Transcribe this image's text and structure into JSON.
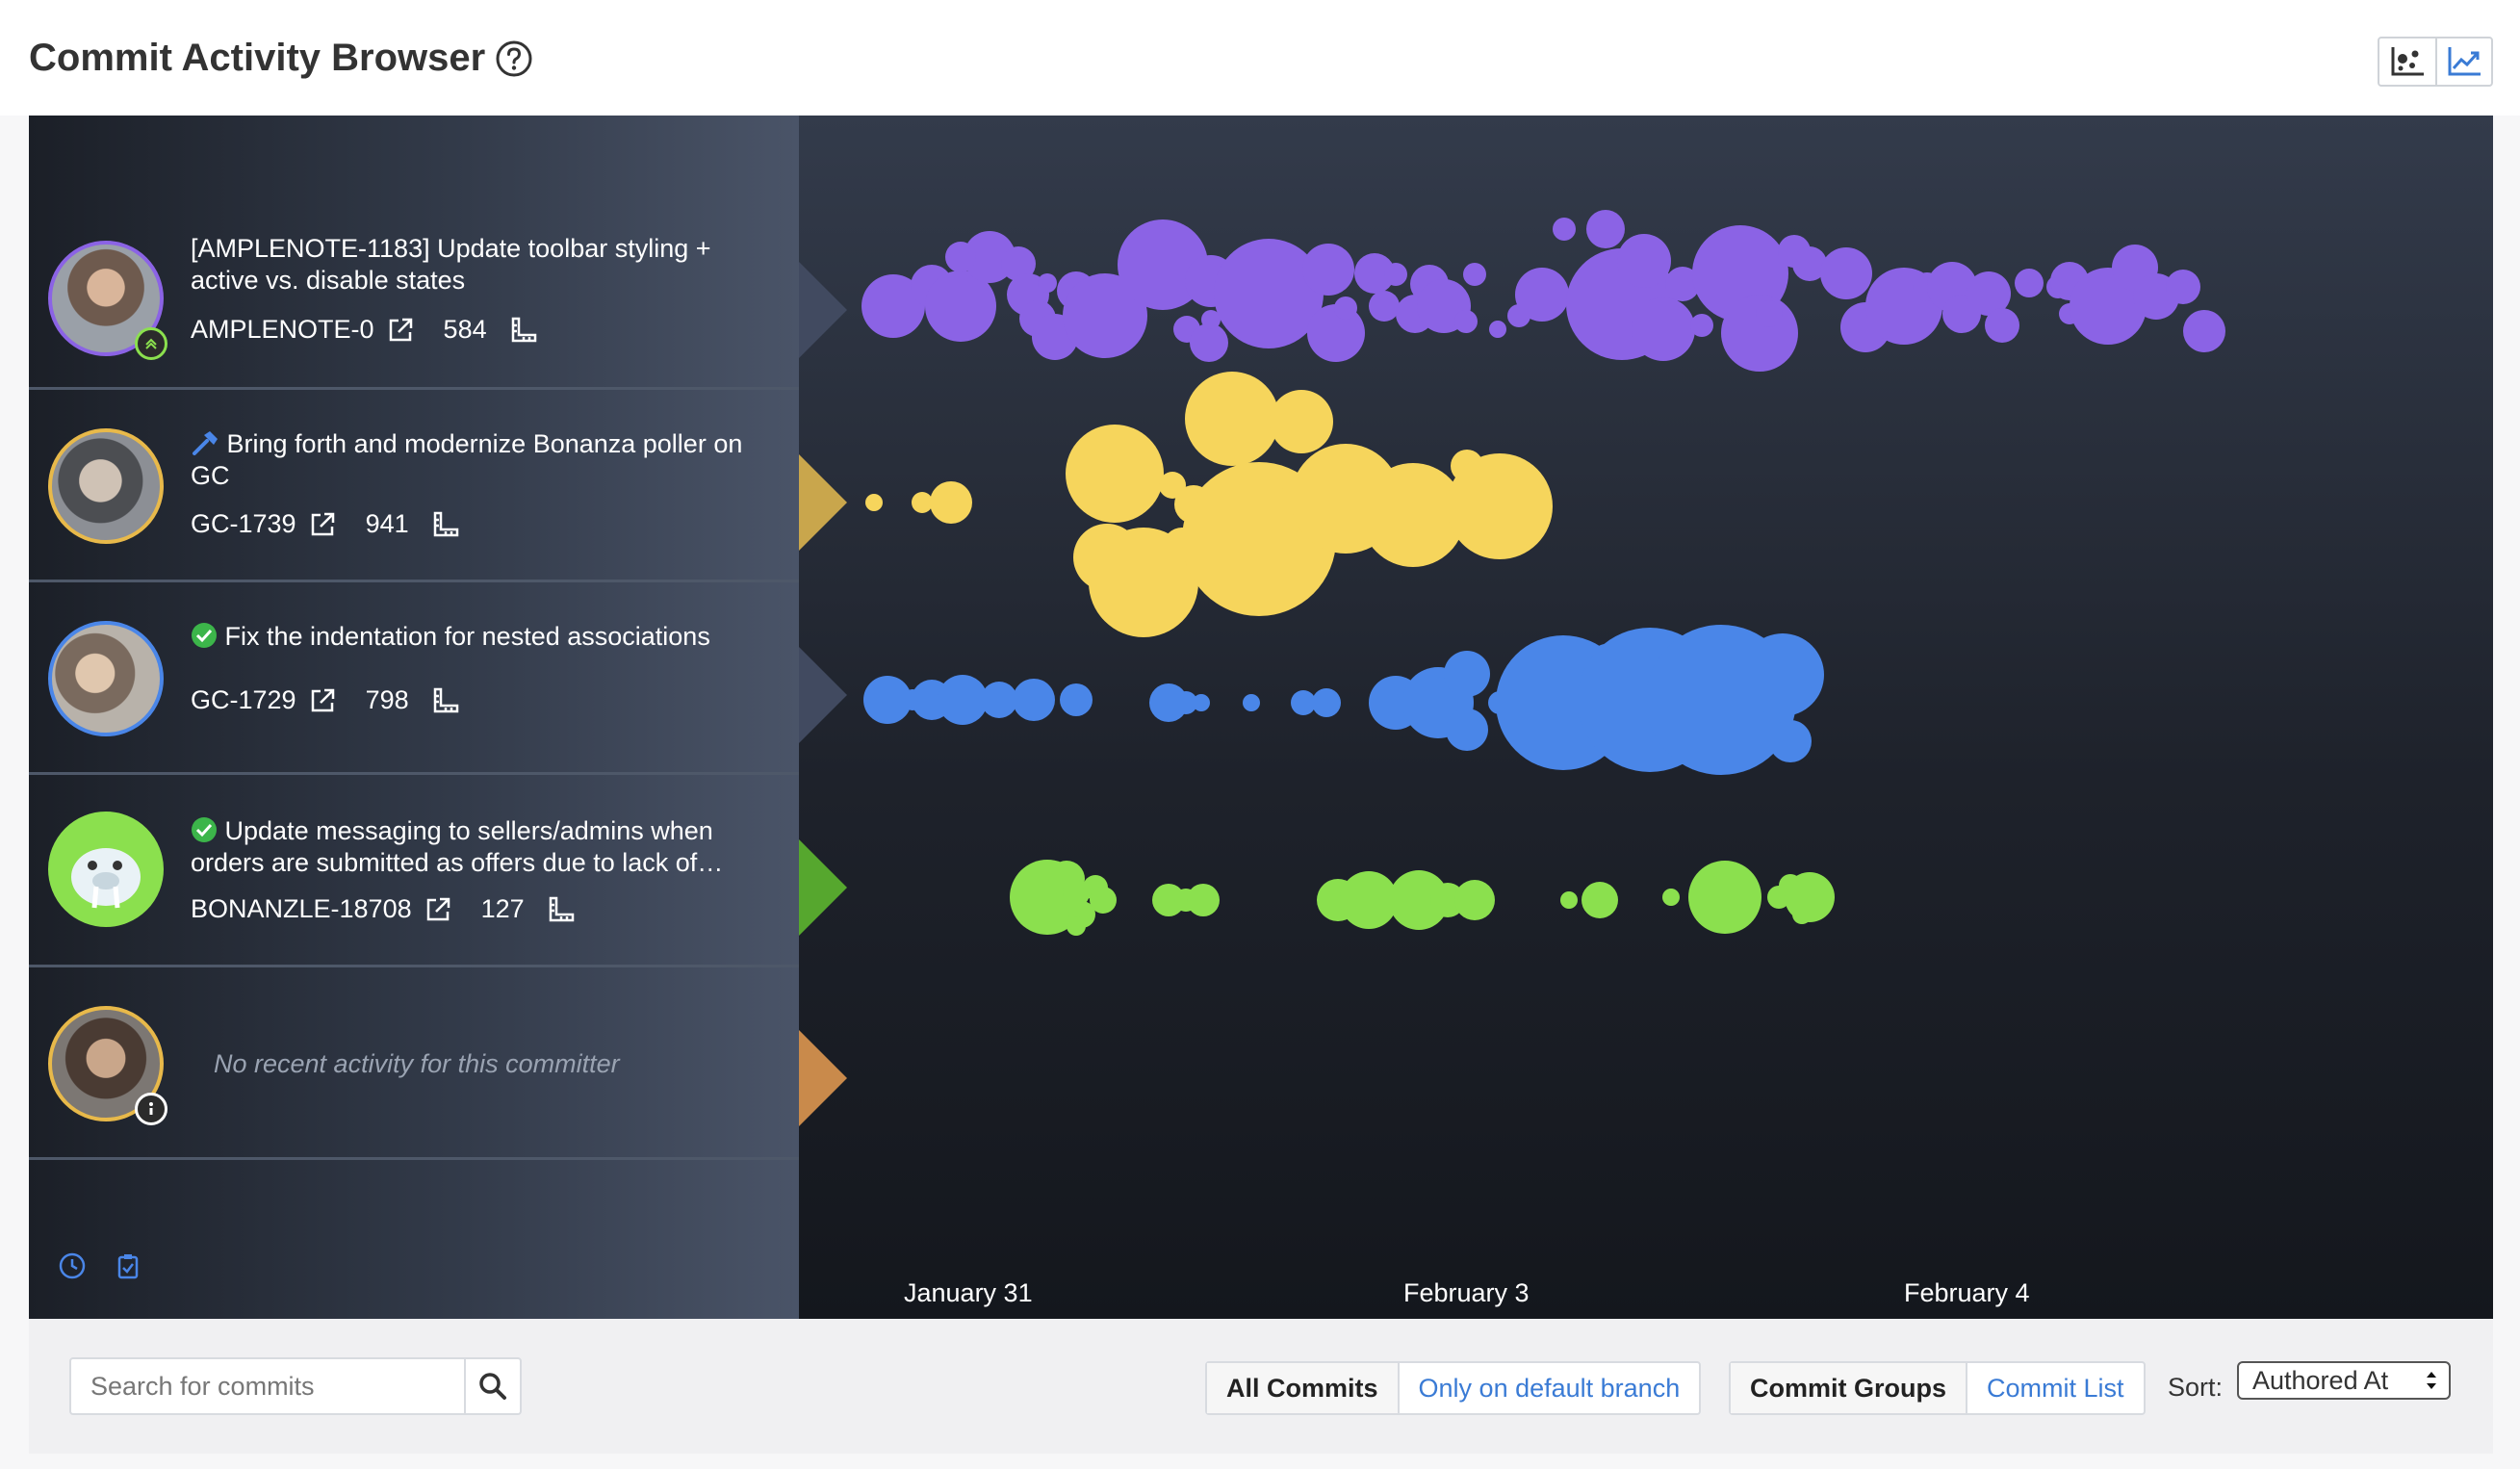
{
  "header": {
    "title": "Commit Activity Browser",
    "view_buttons": [
      {
        "icon": "scatter-chart-icon"
      },
      {
        "icon": "line-chart-icon"
      }
    ]
  },
  "committers": [
    {
      "message": "[AMPLENOTE-1183] Update toolbar styling + active vs. disable states",
      "branch": "AMPLENOTE-0",
      "count": "584",
      "color": "#8b63e5",
      "avatar_border": "#8b63e5",
      "badge_icon": "chevron-up-icon",
      "prefix_icon": ""
    },
    {
      "message": "Bring forth and modernize Bonanza poller on GC",
      "branch": "GC-1739",
      "count": "941",
      "color": "#f6d55c",
      "avatar_border": "#e8b94a",
      "badge_icon": "",
      "prefix_icon": "hammer-icon"
    },
    {
      "message": "Fix the indentation for nested associations",
      "branch": "GC-1729",
      "count": "798",
      "color": "#4a86e8",
      "avatar_border": "#4a86e8",
      "badge_icon": "",
      "prefix_icon": "check-circle-icon"
    },
    {
      "message": "Update messaging to sellers/admins when orders are submitted as offers due to lack of…",
      "branch": "BONANZLE-18708",
      "count": "127",
      "color": "#8be04e",
      "avatar_border": "#8be04e",
      "badge_icon": "",
      "prefix_icon": "check-circle-icon"
    },
    {
      "message": "No recent activity for this committer",
      "color": "#c98a4b",
      "avatar_border": "#e8b94a",
      "badge_icon": "info-icon"
    }
  ],
  "timeline": {
    "axis_labels": [
      "January 31",
      "February 3",
      "February 4"
    ]
  },
  "toolbar": {
    "search_placeholder": "Search for commits",
    "filter": {
      "all": "All Commits",
      "default_branch": "Only on default branch"
    },
    "mode": {
      "groups": "Commit Groups",
      "list": "Commit List"
    },
    "sort_label": "Sort:",
    "sort_value": "Authored At"
  }
}
